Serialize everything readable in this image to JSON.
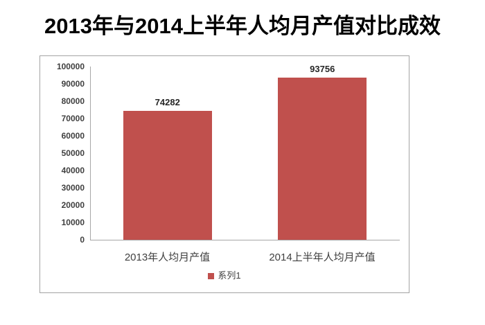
{
  "page": {
    "title": "2013年与2014上半年人均月产值对比成效"
  },
  "chart_data": {
    "type": "bar",
    "title": "2013年与2014上半年人均月产值对比成效",
    "categories": [
      "2013年人均月产值",
      "2014上半年人均月产值"
    ],
    "series": [
      {
        "name": "系列1",
        "values": [
          74282,
          93756
        ]
      }
    ],
    "data_labels": [
      "74282",
      "93756"
    ],
    "xlabel": "",
    "ylabel": "",
    "ylim": [
      0,
      100000
    ],
    "yticks": [
      0,
      10000,
      20000,
      30000,
      40000,
      50000,
      60000,
      70000,
      80000,
      90000,
      100000
    ],
    "grid": false,
    "legend_position": "bottom",
    "colors": {
      "bar": "#C0504D",
      "axis": "#A6A6A6",
      "frame_border": "#A3A3A3",
      "tick_text": "#3F3F3F",
      "label_text": "#262626",
      "title_text": "#000000"
    }
  }
}
